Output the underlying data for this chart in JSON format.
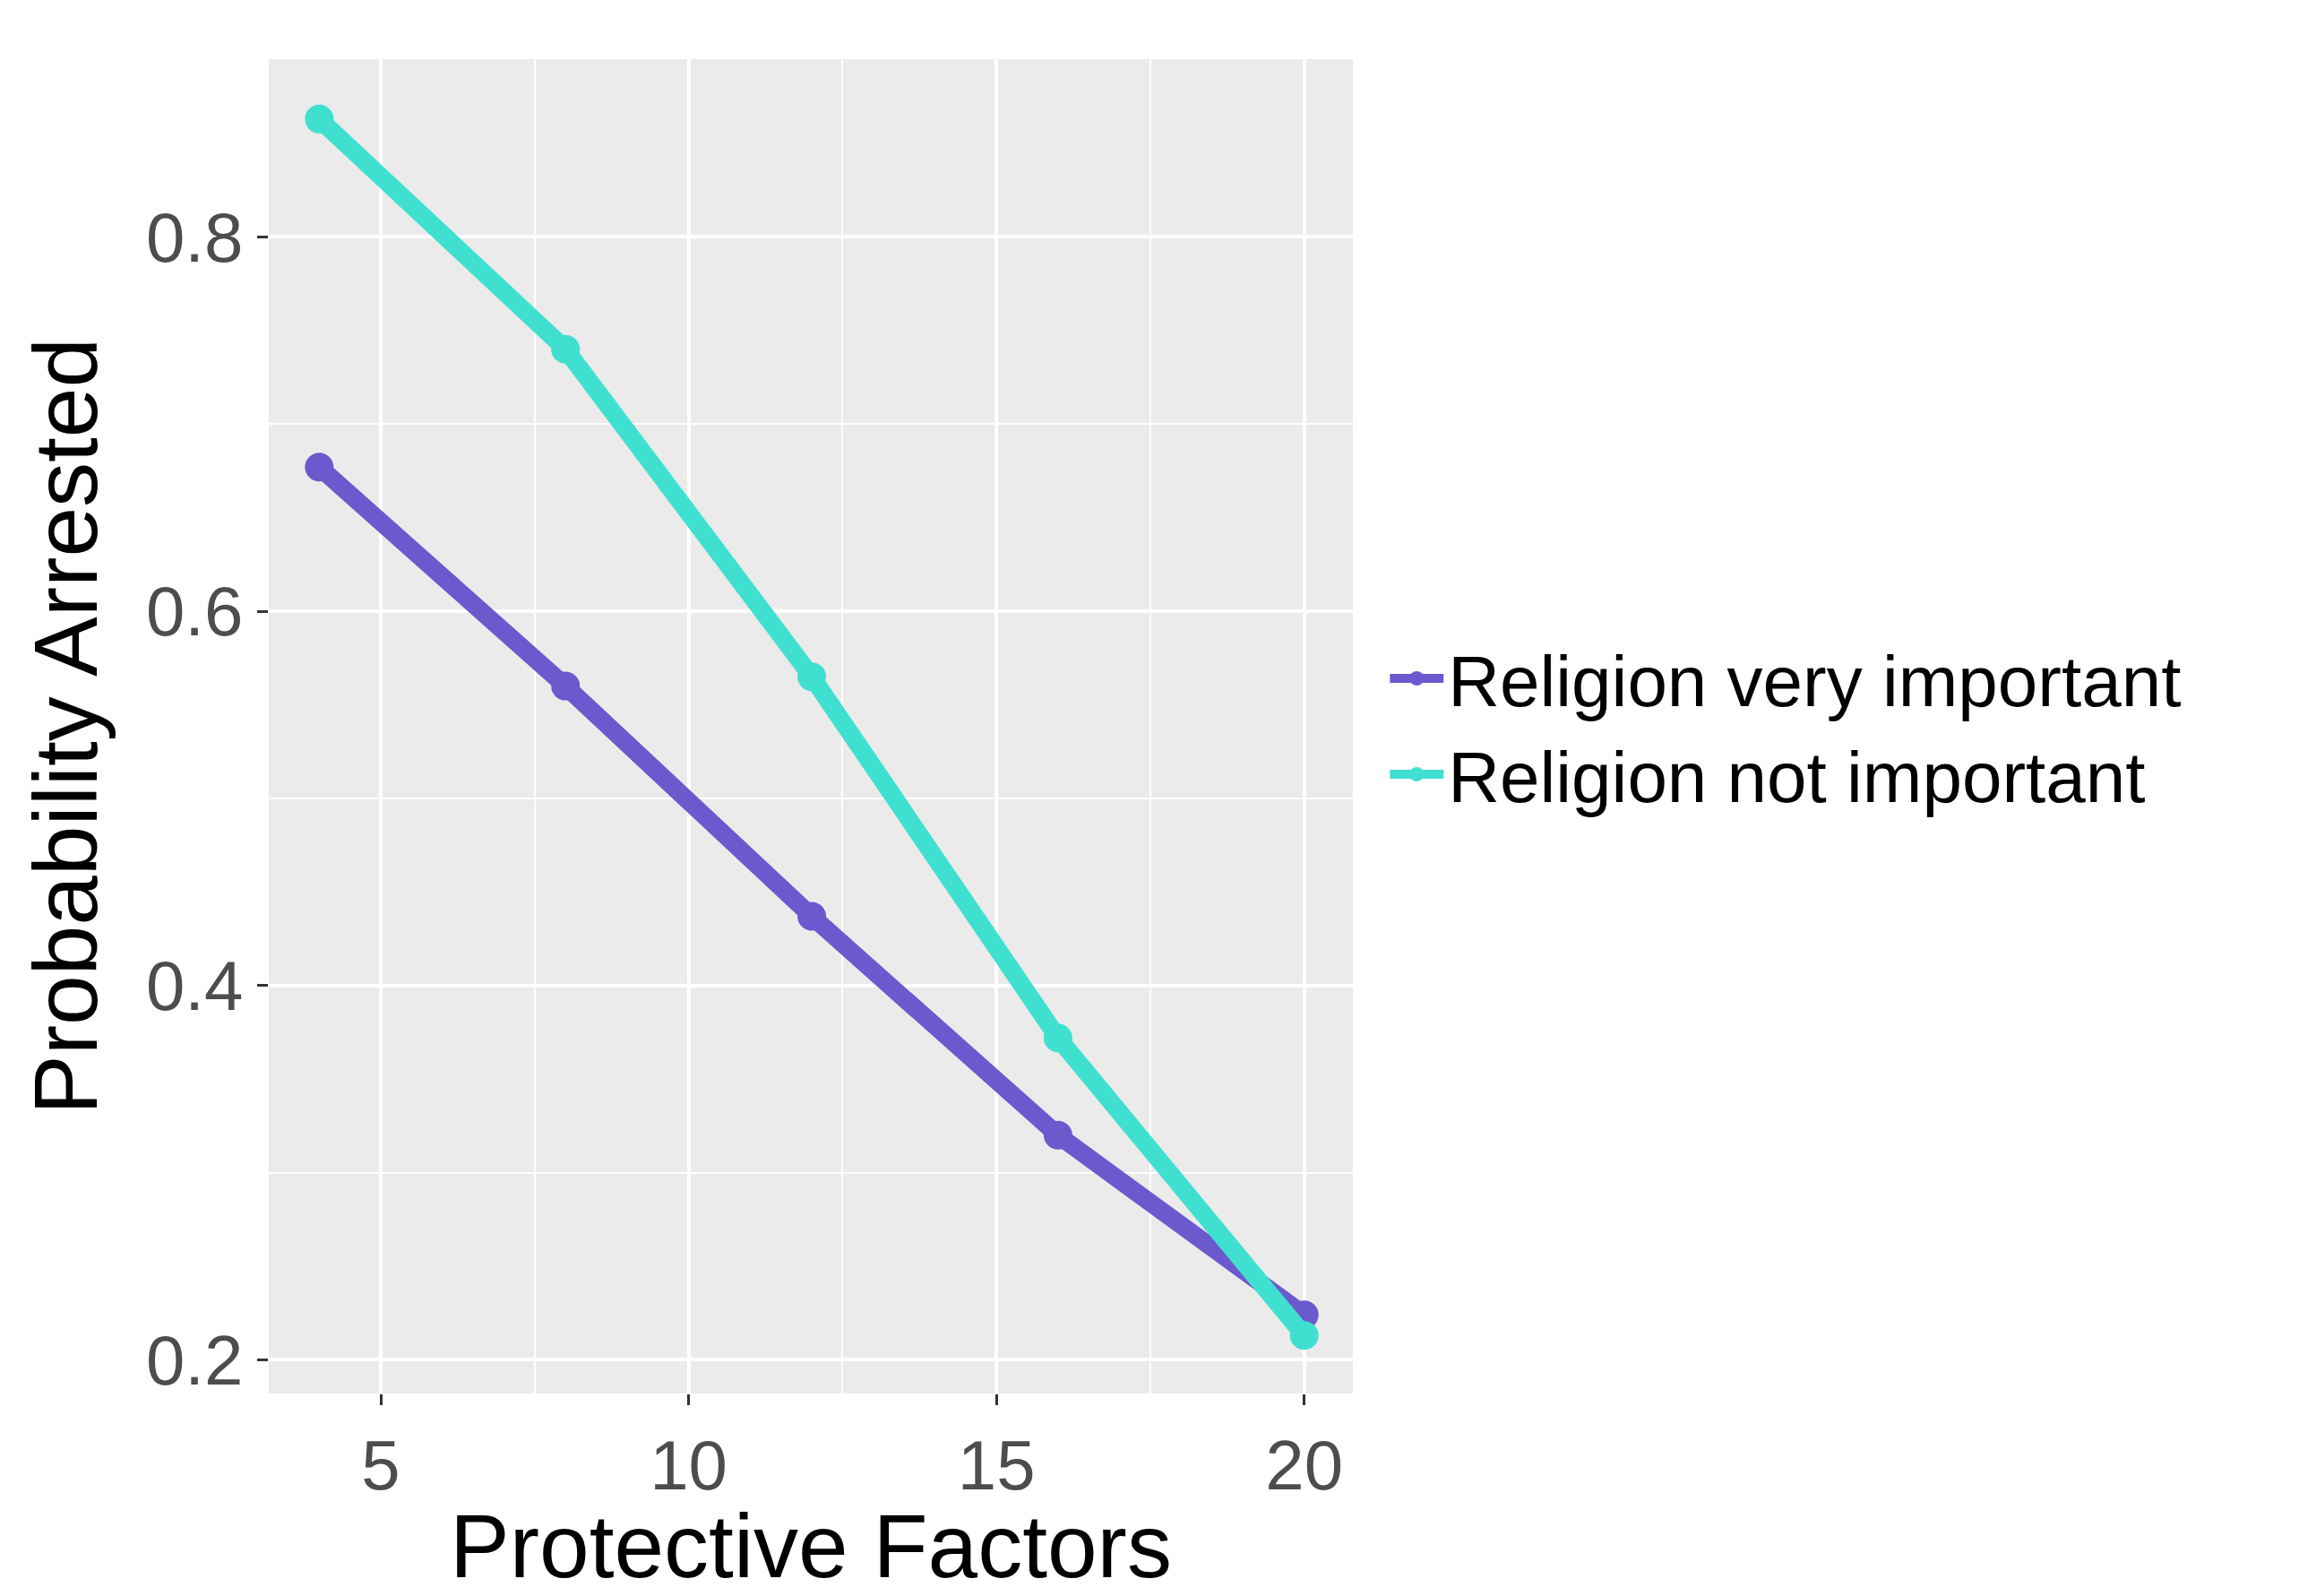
{
  "chart_data": {
    "type": "line",
    "xlabel": "Protective Factors",
    "ylabel": "Probability Arrested",
    "x": [
      4,
      8,
      12,
      16,
      20
    ],
    "series": [
      {
        "name": "Religion very important",
        "color": "#6a5acd",
        "values": [
          0.677,
          0.56,
          0.437,
          0.32,
          0.224
        ]
      },
      {
        "name": "Religion not important",
        "color": "#40e0d0",
        "values": [
          0.863,
          0.74,
          0.565,
          0.372,
          0.213
        ]
      }
    ],
    "xlim": [
      3.18,
      20.79
    ],
    "xticks": [
      5,
      10,
      15,
      20
    ],
    "ylim": [
      0.182,
      0.895
    ],
    "yticks": [
      0.2,
      0.4,
      0.6,
      0.8
    ],
    "grid": true,
    "legend": "right",
    "marker": "circle",
    "line_style": "solid"
  }
}
